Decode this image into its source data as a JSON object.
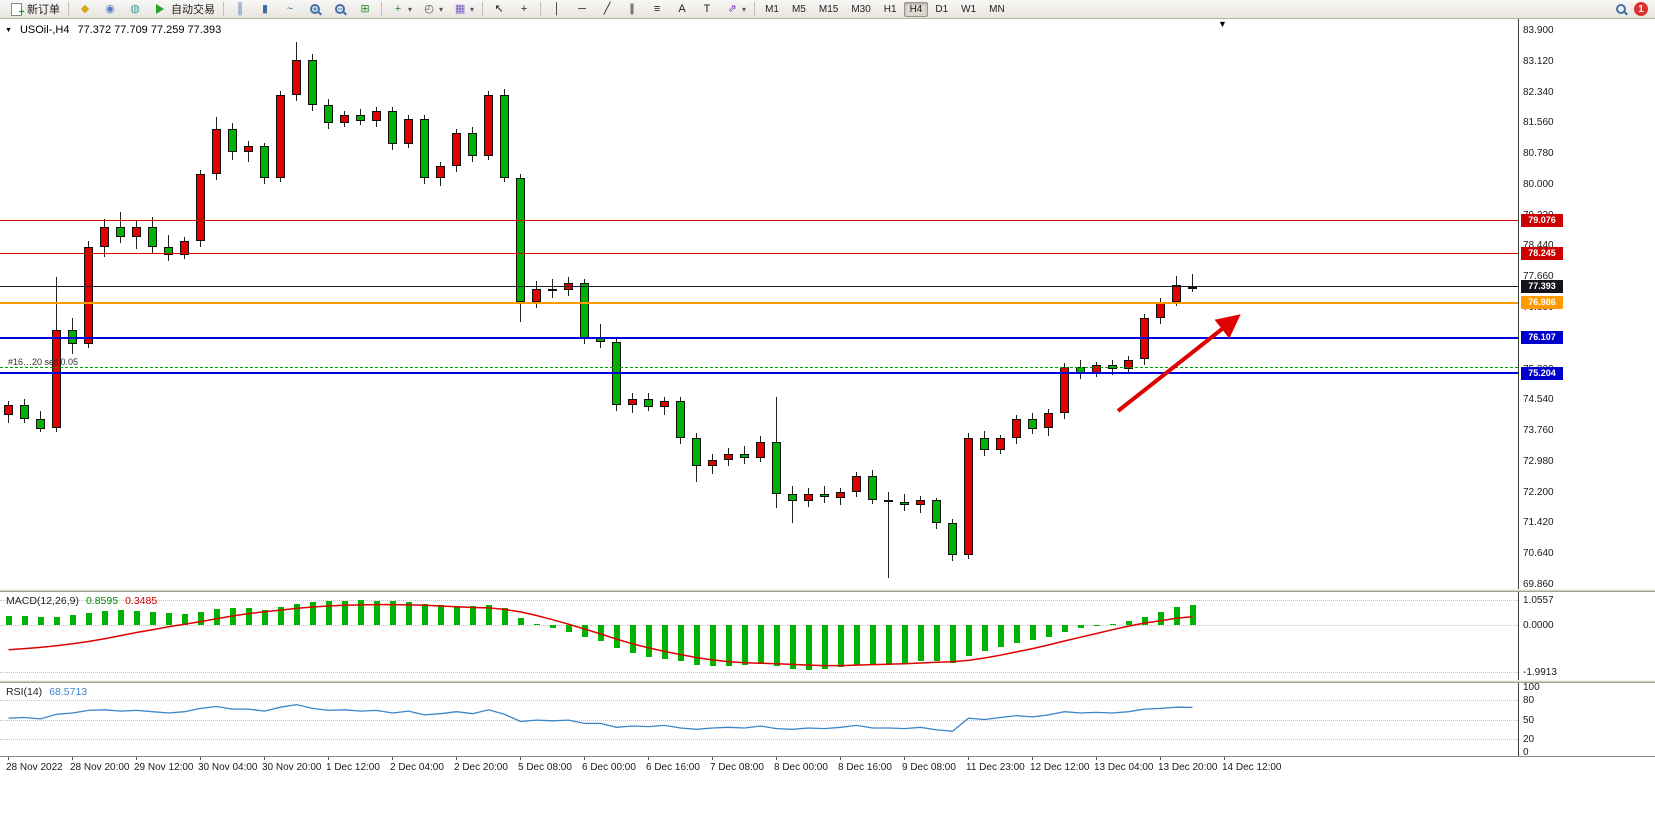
{
  "toolbar": {
    "active_timeframe": "H4",
    "notification_count": "1",
    "items": [
      {
        "t": "btn",
        "name": "new-order-button",
        "cls": "ic-page",
        "label": "新订单"
      },
      {
        "t": "sep"
      },
      {
        "t": "ic",
        "name": "megaphone-icon",
        "glyph": "◆",
        "color": "#d6a519"
      },
      {
        "t": "ic",
        "name": "profile-icon",
        "glyph": "◉",
        "color": "#567fc0"
      },
      {
        "t": "ic",
        "name": "support-icon",
        "glyph": "◍",
        "color": "#35a0a0"
      },
      {
        "t": "btn",
        "name": "auto-trading-button",
        "cls": "ic-play",
        "label": "自动交易"
      },
      {
        "t": "sep"
      },
      {
        "t": "ic",
        "name": "bar-chart-icon",
        "glyph": "║",
        "color": "#3a6ea5"
      },
      {
        "t": "ic",
        "name": "candlestick-chart-icon",
        "glyph": "▮",
        "color": "#3a6ea5"
      },
      {
        "t": "ic",
        "name": "line-chart-icon",
        "glyph": "~",
        "color": "#3a6ea5"
      },
      {
        "t": "ic",
        "name": "zoom-in-icon",
        "cls": "ic-mag",
        "sign": "+"
      },
      {
        "t": "ic",
        "name": "zoom-out-icon",
        "cls": "ic-mag",
        "sign": "−"
      },
      {
        "t": "ic",
        "name": "tile-windows-icon",
        "glyph": "⊞",
        "color": "#2e8b2e"
      },
      {
        "t": "sep"
      },
      {
        "t": "ic",
        "name": "indicators-icon",
        "glyph": "+",
        "color": "#2e8b2e",
        "drop": true
      },
      {
        "t": "ic",
        "name": "periods-icon",
        "glyph": "◴",
        "color": "#555555",
        "drop": true
      },
      {
        "t": "ic",
        "name": "templates-icon",
        "glyph": "▦",
        "color": "#7a5fc0",
        "drop": true
      },
      {
        "t": "sep"
      },
      {
        "t": "ic",
        "name": "cursor-icon",
        "glyph": "↖",
        "color": "#222222"
      },
      {
        "t": "ic",
        "name": "crosshair-icon",
        "glyph": "+",
        "color": "#222222"
      },
      {
        "t": "sep"
      },
      {
        "t": "ic",
        "name": "vertical-line-icon",
        "glyph": "│",
        "color": "#222222"
      },
      {
        "t": "ic",
        "name": "horizontal-line-icon",
        "glyph": "─",
        "color": "#222222"
      },
      {
        "t": "ic",
        "name": "trendline-icon",
        "glyph": "╱",
        "color": "#222222"
      },
      {
        "t": "ic",
        "name": "channel-icon",
        "glyph": "∥",
        "color": "#222222"
      },
      {
        "t": "ic",
        "name": "fibonacci-icon",
        "glyph": "≡",
        "color": "#222222"
      },
      {
        "t": "ic",
        "name": "text-icon",
        "glyph": "A",
        "color": "#222222"
      },
      {
        "t": "ic",
        "name": "label-icon",
        "glyph": "T",
        "color": "#222222"
      },
      {
        "t": "ic",
        "name": "arrows-icon",
        "glyph": "⇗",
        "color": "#7a2fc0",
        "drop": true
      },
      {
        "t": "sep"
      },
      {
        "t": "tf",
        "label": "M1"
      },
      {
        "t": "tf",
        "label": "M5"
      },
      {
        "t": "tf",
        "label": "M15"
      },
      {
        "t": "tf",
        "label": "M30"
      },
      {
        "t": "tf",
        "label": "H1"
      },
      {
        "t": "tf",
        "label": "H4"
      },
      {
        "t": "tf",
        "label": "D1"
      },
      {
        "t": "tf",
        "label": "W1"
      },
      {
        "t": "tf",
        "label": "MN"
      },
      {
        "t": "spring"
      },
      {
        "t": "ic",
        "name": "search-icon",
        "cls": "ic-mag",
        "sign": ""
      },
      {
        "t": "badge",
        "name": "notification-badge",
        "label": "1"
      }
    ]
  },
  "chart": {
    "symbol_period": "USOil-,H4",
    "ohlc_line": "77.372 77.709 77.259 77.393",
    "position_label": "#16…20 sell 0.05",
    "levels": [
      {
        "price": 79.076,
        "label": "79.076",
        "color": "#dd0000",
        "tag_bg": "#cc0000",
        "style": "solid",
        "width": 1
      },
      {
        "price": 78.245,
        "label": "78.245",
        "color": "#dd0000",
        "tag_bg": "#cc0000",
        "style": "solid",
        "width": 1
      },
      {
        "price": 77.393,
        "label": "77.393",
        "color": "#1c1c28",
        "tag_bg": "#14141e",
        "style": "solid",
        "width": 1
      },
      {
        "price": 76.986,
        "label": "76.986",
        "color": "#ff9b00",
        "tag_bg": "#ff9b00",
        "style": "solid",
        "width": 2
      },
      {
        "price": 76.107,
        "label": "76.107",
        "color": "#0000dd",
        "tag_bg": "#0000cc",
        "style": "solid",
        "width": 2
      },
      {
        "price": 75.204,
        "label": "75.204",
        "color": "#0000dd",
        "tag_bg": "#0000cc",
        "style": "solid",
        "width": 2
      },
      {
        "price": 75.345,
        "label": null,
        "color": "#00a000",
        "style": "dashed",
        "width": 1,
        "role": "position"
      }
    ]
  },
  "macd": {
    "name": "MACD(12,26,9)",
    "main_value": "0.8595",
    "signal_value": "0.3485",
    "scale_labels": [
      "1.0557",
      "0.0000",
      "-1.9913"
    ],
    "scale_values": [
      1.0557,
      0,
      -1.9913
    ]
  },
  "rsi": {
    "name": "RSI(14)",
    "value": "68.5713",
    "scale_labels": [
      "100",
      "80",
      "50",
      "20",
      "0"
    ],
    "scale_values": [
      100,
      80,
      50,
      20,
      0
    ],
    "levels": [
      80,
      50,
      20
    ]
  },
  "chart_data": {
    "type": "candlestick",
    "symbol": "USOil-",
    "period": "H4",
    "ohlc_current": {
      "open": 77.372,
      "high": 77.709,
      "low": 77.259,
      "close": 77.393
    },
    "up_color": "#e00000",
    "down_color": "#00b300",
    "price_axis": {
      "labels": [
        "83.900",
        "83.120",
        "82.340",
        "81.560",
        "80.780",
        "80.000",
        "79.220",
        "78.440",
        "77.660",
        "76.880",
        "76.100",
        "75.320",
        "74.540",
        "73.760",
        "72.980",
        "72.200",
        "71.420",
        "70.640",
        "69.860"
      ]
    },
    "x_axis": {
      "candles_per_label": 4,
      "labels": [
        "28 Nov 2022",
        "28 Nov 20:00",
        "29 Nov 12:00",
        "30 Nov 04:00",
        "30 Nov 20:00",
        "1 Dec 12:00",
        "2 Dec 04:00",
        "2 Dec 20:00",
        "5 Dec 08:00",
        "6 Dec 00:00",
        "6 Dec 16:00",
        "7 Dec 08:00",
        "8 Dec 00:00",
        "8 Dec 16:00",
        "9 Dec 08:00",
        "11 Dec 23:00",
        "12 Dec 12:00",
        "13 Dec 04:00",
        "13 Dec 20:00",
        "14 Dec 12:00"
      ]
    },
    "candles_ohlc": [
      [
        74.15,
        74.5,
        73.95,
        74.4
      ],
      [
        74.4,
        74.55,
        73.95,
        74.05
      ],
      [
        74.05,
        74.25,
        73.7,
        73.8
      ],
      [
        73.8,
        77.65,
        73.7,
        76.3
      ],
      [
        76.3,
        76.6,
        75.7,
        75.95
      ],
      [
        75.95,
        78.55,
        75.85,
        78.4
      ],
      [
        78.4,
        79.1,
        78.15,
        78.9
      ],
      [
        78.9,
        79.3,
        78.5,
        78.65
      ],
      [
        78.65,
        79.05,
        78.35,
        78.9
      ],
      [
        78.9,
        79.15,
        78.25,
        78.4
      ],
      [
        78.4,
        78.7,
        78.05,
        78.2
      ],
      [
        78.2,
        78.65,
        78.1,
        78.55
      ],
      [
        78.55,
        80.35,
        78.4,
        80.25
      ],
      [
        80.25,
        81.7,
        80.1,
        81.4
      ],
      [
        81.4,
        81.55,
        80.6,
        80.8
      ],
      [
        80.8,
        81.1,
        80.55,
        80.95
      ],
      [
        80.95,
        81.05,
        80.0,
        80.15
      ],
      [
        80.15,
        82.35,
        80.05,
        82.25
      ],
      [
        82.25,
        83.6,
        82.1,
        83.15
      ],
      [
        83.15,
        83.3,
        81.85,
        82.0
      ],
      [
        82.0,
        82.15,
        81.4,
        81.55
      ],
      [
        81.55,
        81.85,
        81.45,
        81.75
      ],
      [
        81.75,
        81.9,
        81.5,
        81.6
      ],
      [
        81.6,
        81.95,
        81.45,
        81.85
      ],
      [
        81.85,
        81.95,
        80.85,
        81.0
      ],
      [
        81.0,
        81.75,
        80.9,
        81.65
      ],
      [
        81.65,
        81.75,
        80.0,
        80.15
      ],
      [
        80.15,
        80.55,
        79.95,
        80.45
      ],
      [
        80.45,
        81.4,
        80.3,
        81.3
      ],
      [
        81.3,
        81.45,
        80.55,
        80.7
      ],
      [
        80.7,
        82.35,
        80.6,
        82.25
      ],
      [
        82.25,
        82.4,
        80.05,
        80.15
      ],
      [
        80.15,
        80.25,
        76.5,
        77.0
      ],
      [
        77.0,
        77.55,
        76.85,
        77.35
      ],
      [
        77.35,
        77.6,
        77.1,
        77.3
      ],
      [
        77.3,
        77.65,
        77.15,
        77.5
      ],
      [
        77.5,
        77.6,
        75.95,
        76.1
      ],
      [
        76.1,
        76.45,
        75.85,
        76.0
      ],
      [
        76.0,
        76.1,
        74.25,
        74.4
      ],
      [
        74.4,
        74.7,
        74.2,
        74.55
      ],
      [
        74.55,
        74.7,
        74.25,
        74.35
      ],
      [
        74.35,
        74.6,
        74.15,
        74.5
      ],
      [
        74.5,
        74.6,
        73.4,
        73.55
      ],
      [
        73.55,
        73.7,
        72.45,
        72.85
      ],
      [
        72.85,
        73.15,
        72.65,
        73.0
      ],
      [
        73.0,
        73.3,
        72.85,
        73.15
      ],
      [
        73.15,
        73.35,
        72.9,
        73.05
      ],
      [
        73.05,
        73.6,
        72.95,
        73.45
      ],
      [
        73.45,
        74.6,
        71.8,
        72.15
      ],
      [
        72.15,
        72.35,
        71.4,
        71.95
      ],
      [
        71.95,
        72.3,
        71.8,
        72.15
      ],
      [
        72.15,
        72.35,
        71.9,
        72.05
      ],
      [
        72.05,
        72.3,
        71.85,
        72.2
      ],
      [
        72.2,
        72.7,
        72.05,
        72.6
      ],
      [
        72.6,
        72.75,
        71.9,
        72.0
      ],
      [
        72.0,
        72.2,
        70.0,
        71.95
      ],
      [
        71.95,
        72.15,
        71.7,
        71.85
      ],
      [
        71.85,
        72.1,
        71.65,
        72.0
      ],
      [
        72.0,
        72.05,
        71.25,
        71.4
      ],
      [
        71.4,
        71.5,
        70.45,
        70.6
      ],
      [
        70.6,
        73.7,
        70.5,
        73.55
      ],
      [
        73.55,
        73.75,
        73.1,
        73.25
      ],
      [
        73.25,
        73.65,
        73.15,
        73.55
      ],
      [
        73.55,
        74.15,
        73.4,
        74.05
      ],
      [
        74.05,
        74.2,
        73.65,
        73.8
      ],
      [
        73.8,
        74.3,
        73.6,
        74.2
      ],
      [
        74.2,
        75.45,
        74.05,
        75.35
      ],
      [
        75.35,
        75.55,
        75.05,
        75.2
      ],
      [
        75.2,
        75.5,
        75.1,
        75.4
      ],
      [
        75.4,
        75.55,
        75.15,
        75.3
      ],
      [
        75.3,
        75.65,
        75.2,
        75.55
      ],
      [
        75.55,
        76.7,
        75.4,
        76.6
      ],
      [
        76.6,
        77.1,
        76.45,
        77.0
      ],
      [
        77.0,
        77.66,
        76.9,
        77.45
      ],
      [
        77.372,
        77.709,
        77.259,
        77.393
      ]
    ],
    "indicators": {
      "macd": {
        "histogram": [
          0.4,
          0.38,
          0.32,
          0.35,
          0.42,
          0.52,
          0.6,
          0.62,
          0.6,
          0.55,
          0.5,
          0.48,
          0.55,
          0.68,
          0.72,
          0.7,
          0.65,
          0.75,
          0.9,
          0.98,
          1.0,
          1.02,
          1.05,
          1.03,
          1.0,
          0.98,
          0.9,
          0.85,
          0.82,
          0.8,
          0.85,
          0.7,
          0.3,
          0.05,
          -0.15,
          -0.3,
          -0.5,
          -0.7,
          -1.0,
          -1.2,
          -1.35,
          -1.45,
          -1.55,
          -1.7,
          -1.75,
          -1.75,
          -1.72,
          -1.65,
          -1.75,
          -1.85,
          -1.9,
          -1.88,
          -1.8,
          -1.7,
          -1.65,
          -1.7,
          -1.65,
          -1.55,
          -1.55,
          -1.6,
          -1.3,
          -1.1,
          -0.95,
          -0.75,
          -0.65,
          -0.5,
          -0.3,
          -0.15,
          -0.05,
          0.05,
          0.15,
          0.35,
          0.55,
          0.75,
          0.86
        ],
        "signal": [
          -1.05,
          -1.0,
          -0.95,
          -0.88,
          -0.8,
          -0.7,
          -0.58,
          -0.45,
          -0.32,
          -0.2,
          -0.08,
          0.03,
          0.14,
          0.26,
          0.38,
          0.48,
          0.56,
          0.63,
          0.7,
          0.76,
          0.8,
          0.83,
          0.85,
          0.86,
          0.86,
          0.85,
          0.83,
          0.8,
          0.77,
          0.74,
          0.72,
          0.66,
          0.55,
          0.4,
          0.22,
          0.03,
          -0.17,
          -0.38,
          -0.6,
          -0.8,
          -0.97,
          -1.12,
          -1.25,
          -1.38,
          -1.48,
          -1.55,
          -1.6,
          -1.62,
          -1.64,
          -1.67,
          -1.7,
          -1.72,
          -1.72,
          -1.7,
          -1.68,
          -1.66,
          -1.64,
          -1.61,
          -1.58,
          -1.56,
          -1.5,
          -1.4,
          -1.28,
          -1.14,
          -1.0,
          -0.85,
          -0.68,
          -0.52,
          -0.36,
          -0.2,
          -0.05,
          0.08,
          0.18,
          0.28,
          0.35
        ]
      },
      "rsi": {
        "values": [
          52,
          53,
          51,
          58,
          60,
          64,
          65,
          63,
          64,
          62,
          60,
          62,
          67,
          70,
          66,
          66,
          63,
          69,
          73,
          67,
          64,
          65,
          63,
          64,
          60,
          63,
          57,
          59,
          62,
          59,
          65,
          58,
          47,
          49,
          48,
          49,
          44,
          44,
          38,
          40,
          39,
          41,
          37,
          35,
          37,
          38,
          37,
          40,
          36,
          35,
          37,
          36,
          38,
          41,
          37,
          37,
          36,
          38,
          34,
          32,
          52,
          50,
          53,
          56,
          54,
          57,
          62,
          60,
          61,
          60,
          62,
          66,
          67,
          69,
          68.57
        ]
      }
    }
  }
}
